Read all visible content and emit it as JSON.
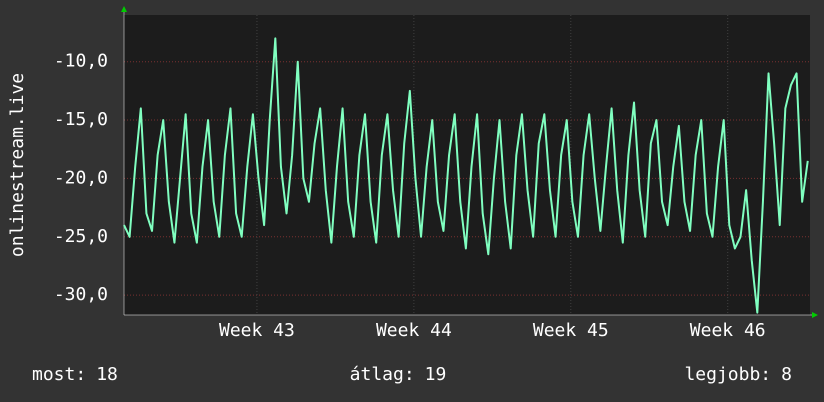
{
  "chart_data": {
    "type": "line",
    "ylabel": "onlinestream.live",
    "color": "#80ffc0",
    "grid": true,
    "xlim": [
      0,
      30.6
    ],
    "ylim": [
      -31.7,
      -6
    ],
    "yticks": [
      {
        "value": -10,
        "label": "-10,0"
      },
      {
        "value": -15,
        "label": "-15,0"
      },
      {
        "value": -20,
        "label": "-20,0"
      },
      {
        "value": -25,
        "label": "-25,0"
      },
      {
        "value": -30,
        "label": "-30,0"
      }
    ],
    "xticks": [
      {
        "value": 5.93,
        "label": "Week 43"
      },
      {
        "value": 12.93,
        "label": "Week 44"
      },
      {
        "value": 19.93,
        "label": "Week 45"
      },
      {
        "value": 26.93,
        "label": "Week 46"
      }
    ],
    "x": [
      0,
      0.25,
      0.5,
      0.75,
      1,
      1.25,
      1.5,
      1.75,
      2,
      2.25,
      2.5,
      2.75,
      3,
      3.25,
      3.5,
      3.75,
      4,
      4.25,
      4.5,
      4.75,
      5,
      5.25,
      5.5,
      5.75,
      6,
      6.25,
      6.5,
      6.75,
      7,
      7.25,
      7.5,
      7.75,
      8,
      8.25,
      8.5,
      8.75,
      9,
      9.25,
      9.5,
      9.75,
      10,
      10.25,
      10.5,
      10.75,
      11,
      11.25,
      11.5,
      11.75,
      12,
      12.25,
      12.5,
      12.75,
      13,
      13.25,
      13.5,
      13.75,
      14,
      14.25,
      14.5,
      14.75,
      15,
      15.25,
      15.5,
      15.75,
      16,
      16.25,
      16.5,
      16.75,
      17,
      17.25,
      17.5,
      17.75,
      18,
      18.25,
      18.5,
      18.75,
      19,
      19.25,
      19.5,
      19.75,
      20,
      20.25,
      20.5,
      20.75,
      21,
      21.25,
      21.5,
      21.75,
      22,
      22.25,
      22.5,
      22.75,
      23,
      23.25,
      23.5,
      23.75,
      24,
      24.25,
      24.5,
      24.75,
      25,
      25.25,
      25.5,
      25.75,
      26,
      26.25,
      26.5,
      26.75,
      27,
      27.25,
      27.5,
      27.75,
      28,
      28.25,
      28.5,
      28.75,
      29,
      29.25,
      29.5,
      29.75,
      30,
      30.25,
      30.5
    ],
    "values": [
      -24,
      -25,
      -19,
      -14,
      -23,
      -24.5,
      -18,
      -15,
      -22,
      -25.5,
      -20,
      -14.5,
      -23,
      -25.5,
      -19,
      -15,
      -22,
      -25,
      -18,
      -14,
      -23,
      -25,
      -19,
      -14.5,
      -20,
      -24,
      -15,
      -8,
      -19,
      -23,
      -18,
      -10,
      -20,
      -22,
      -17,
      -14,
      -21,
      -25.5,
      -19,
      -14,
      -22,
      -25,
      -18,
      -14.5,
      -22,
      -25.5,
      -18,
      -14.5,
      -21,
      -25,
      -17,
      -12.5,
      -20,
      -25,
      -19,
      -15,
      -22,
      -24.5,
      -18,
      -14.5,
      -22,
      -26,
      -19,
      -14.5,
      -23,
      -26.5,
      -20,
      -15,
      -22,
      -26,
      -18,
      -14.5,
      -21,
      -25,
      -17,
      -14.5,
      -21,
      -25,
      -18,
      -15,
      -22,
      -25,
      -18,
      -14.5,
      -20,
      -24.5,
      -19,
      -14,
      -21,
      -25.5,
      -18,
      -13.5,
      -21,
      -25,
      -17,
      -15,
      -22,
      -24,
      -19,
      -15.5,
      -22,
      -24.5,
      -18,
      -15,
      -23,
      -25,
      -19,
      -15,
      -24,
      -26,
      -25,
      -21,
      -27,
      -31.5,
      -22,
      -11,
      -17,
      -24,
      -14,
      -12,
      -11,
      -22,
      -18.5
    ],
    "stats": [
      {
        "label": "most:",
        "value": 18
      },
      {
        "label": "átlag:",
        "value": 19
      },
      {
        "label": "legjobb:",
        "value": 8
      }
    ]
  }
}
